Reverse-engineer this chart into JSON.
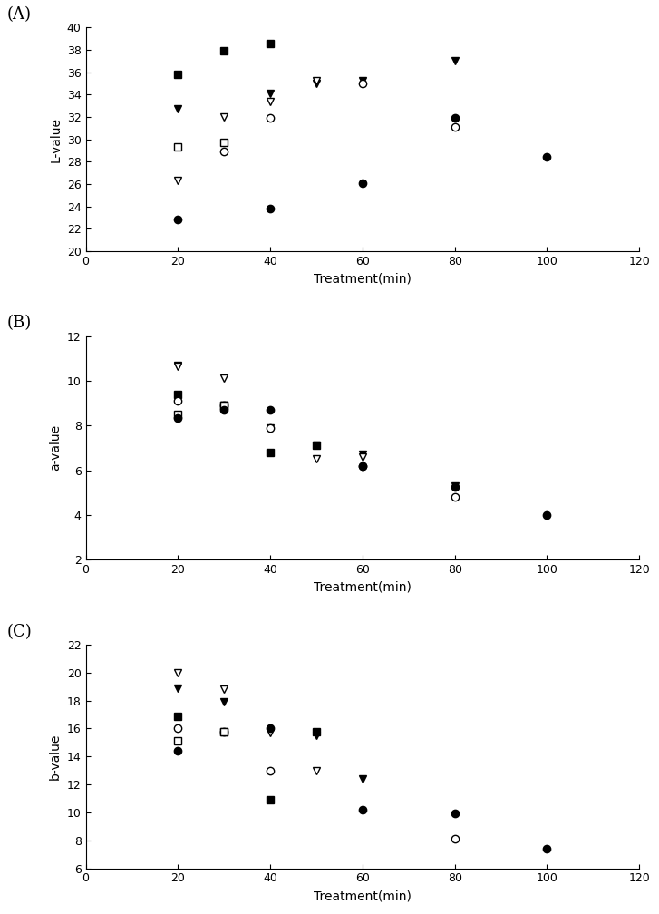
{
  "panel_A": {
    "ylabel": "L-value",
    "ylim": [
      20,
      40
    ],
    "yticks": [
      20,
      22,
      24,
      26,
      28,
      30,
      32,
      34,
      36,
      38,
      40
    ],
    "series": {
      "filled_square": {
        "x": [
          20,
          30,
          40
        ],
        "y": [
          35.8,
          37.9,
          38.6
        ]
      },
      "filled_tri_down": {
        "x": [
          20,
          40,
          50,
          60,
          80
        ],
        "y": [
          32.7,
          34.1,
          35.0,
          35.2,
          37.0
        ]
      },
      "open_tri_down": {
        "x": [
          20,
          30,
          40,
          50
        ],
        "y": [
          26.3,
          32.0,
          33.4,
          35.2
        ]
      },
      "open_circle": {
        "x": [
          30,
          40,
          60,
          80
        ],
        "y": [
          28.9,
          31.9,
          35.0,
          31.1
        ]
      },
      "open_square": {
        "x": [
          20,
          30
        ],
        "y": [
          29.3,
          29.7
        ]
      },
      "filled_circle": {
        "x": [
          20,
          40,
          60,
          80,
          100
        ],
        "y": [
          22.8,
          23.8,
          26.1,
          31.9,
          28.4
        ]
      }
    }
  },
  "panel_B": {
    "ylabel": "a-value",
    "ylim": [
      2,
      12
    ],
    "yticks": [
      2,
      4,
      6,
      8,
      10,
      12
    ],
    "series": {
      "filled_square": {
        "x": [
          20,
          30,
          40,
          50
        ],
        "y": [
          9.4,
          8.9,
          6.8,
          7.1
        ]
      },
      "filled_tri_down": {
        "x": [
          20,
          30,
          50,
          60,
          80
        ],
        "y": [
          10.7,
          8.9,
          7.1,
          6.7,
          5.3
        ]
      },
      "open_tri_down": {
        "x": [
          20,
          30,
          40,
          50,
          60
        ],
        "y": [
          10.65,
          10.1,
          7.9,
          6.5,
          6.6
        ]
      },
      "open_circle": {
        "x": [
          20,
          30,
          40,
          60,
          80
        ],
        "y": [
          9.1,
          8.9,
          7.9,
          6.2,
          4.8
        ]
      },
      "open_square": {
        "x": [
          20,
          30
        ],
        "y": [
          8.5,
          8.9
        ]
      },
      "filled_circle": {
        "x": [
          20,
          30,
          40,
          60,
          80,
          100
        ],
        "y": [
          8.35,
          8.7,
          8.7,
          6.2,
          5.25,
          4.0
        ]
      }
    }
  },
  "panel_C": {
    "ylabel": "b-value",
    "ylim": [
      6,
      22
    ],
    "yticks": [
      6,
      8,
      10,
      12,
      14,
      16,
      18,
      20,
      22
    ],
    "series": {
      "filled_square": {
        "x": [
          20,
          30,
          40,
          50
        ],
        "y": [
          16.9,
          15.8,
          10.9,
          15.8
        ]
      },
      "filled_tri_down": {
        "x": [
          20,
          30,
          50,
          60
        ],
        "y": [
          18.9,
          17.9,
          15.5,
          12.4
        ]
      },
      "open_tri_down": {
        "x": [
          20,
          30,
          40,
          50
        ],
        "y": [
          20.0,
          18.8,
          15.7,
          13.0
        ]
      },
      "open_circle": {
        "x": [
          20,
          30,
          40,
          80
        ],
        "y": [
          16.0,
          15.8,
          13.0,
          8.1
        ]
      },
      "open_square": {
        "x": [
          20,
          30
        ],
        "y": [
          15.1,
          15.8
        ]
      },
      "filled_circle": {
        "x": [
          20,
          40,
          60,
          80,
          100
        ],
        "y": [
          14.4,
          16.0,
          10.2,
          9.9,
          7.4
        ]
      }
    }
  },
  "xlabel": "Treatment(min)",
  "xlim": [
    0,
    120
  ],
  "xticks": [
    0,
    20,
    40,
    60,
    80,
    100,
    120
  ],
  "panel_labels": [
    "(A)",
    "(B)",
    "(C)"
  ],
  "marker_size": 6,
  "edge_width": 1.0
}
